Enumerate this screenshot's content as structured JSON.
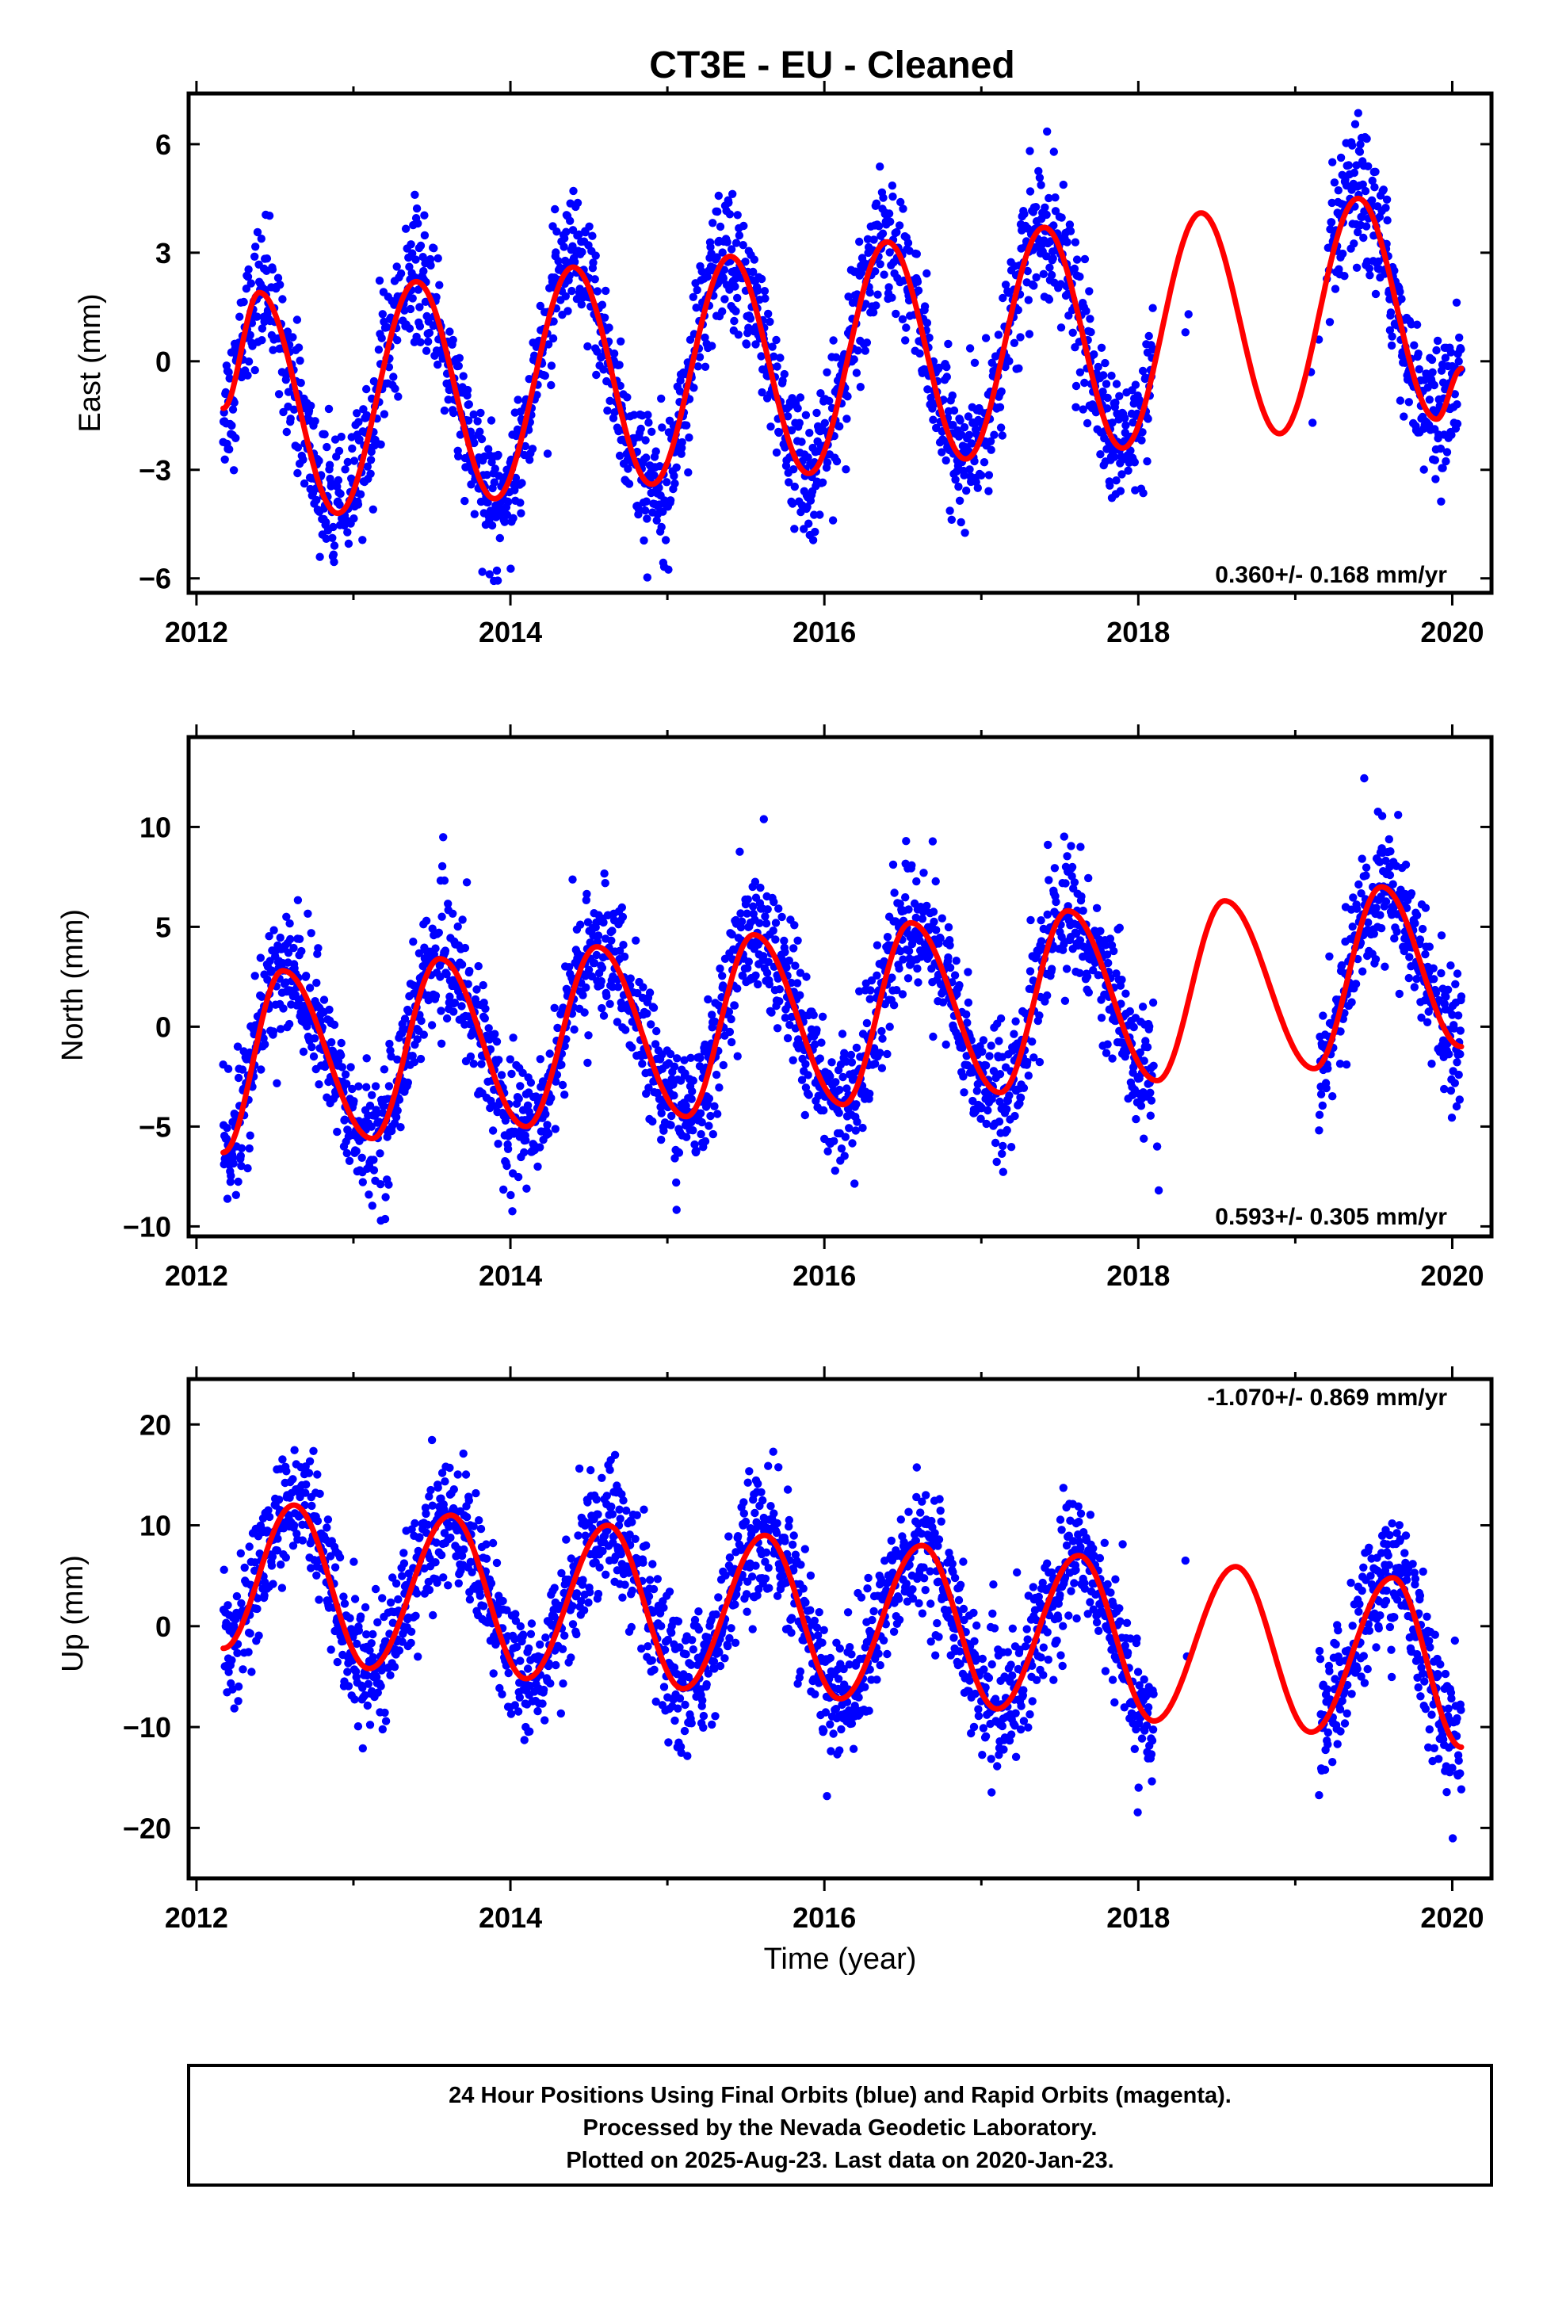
{
  "title": "CT3E  - EU - Cleaned",
  "footer": {
    "lines": [
      "24 Hour Positions Using Final Orbits (blue) and Rapid Orbits (magenta).",
      "Processed by the Nevada Geodetic Laboratory.",
      "Plotted on 2025-Aug-23. Last data on 2020-Jan-23."
    ]
  },
  "colors": {
    "points": "#0000ff",
    "model": "#ff0000",
    "frame": "#000000"
  },
  "chart_data": [
    {
      "type": "scatter",
      "ylabel": "East (mm)",
      "xlim": [
        2011.95,
        2020.25
      ],
      "ylim": [
        -6.4,
        7.4
      ],
      "yticks": [
        -6,
        -3,
        0,
        3,
        6
      ],
      "yticklabels": [
        "−6",
        "−3",
        "0",
        "3",
        "6"
      ],
      "xticks": [
        2012,
        2014,
        2016,
        2018,
        2020
      ],
      "xticklabels": [
        "2012",
        "2014",
        "2016",
        "2018",
        "2020"
      ],
      "rate_label": "0.360+/- 0.168 mm/yr",
      "rate_position": "bottom-right",
      "model": {
        "start": 2012.17,
        "end": 2020.06,
        "peaks": [
          [
            2012.4,
            1.9
          ],
          [
            2013.4,
            2.2
          ],
          [
            2014.4,
            2.6
          ],
          [
            2015.4,
            2.9
          ],
          [
            2016.4,
            3.3
          ],
          [
            2017.4,
            3.7
          ],
          [
            2018.4,
            4.1
          ],
          [
            2019.4,
            4.5
          ]
        ],
        "troughs": [
          [
            2012.17,
            -1.3
          ],
          [
            2012.9,
            -4.2
          ],
          [
            2013.9,
            -3.8
          ],
          [
            2014.9,
            -3.4
          ],
          [
            2015.9,
            -3.1
          ],
          [
            2016.9,
            -2.7
          ],
          [
            2017.9,
            -2.4
          ],
          [
            2018.9,
            -2.0
          ],
          [
            2019.9,
            -1.6
          ],
          [
            2020.06,
            -0.2
          ]
        ]
      },
      "scatter_gaps": [
        [
          2018.1,
          2019.2
        ]
      ],
      "sparse_points": [
        [
          2018.3,
          0.8
        ],
        [
          2018.32,
          1.3
        ],
        [
          2019.1,
          -0.3
        ],
        [
          2019.11,
          -1.7
        ],
        [
          2019.15,
          0.6
        ]
      ],
      "noise_sd": 0.9
    },
    {
      "type": "scatter",
      "ylabel": "North (mm)",
      "xlim": [
        2011.95,
        2020.25
      ],
      "ylim": [
        -10.5,
        14.5
      ],
      "yticks": [
        -10,
        -5,
        0,
        5,
        10
      ],
      "yticklabels": [
        "−10",
        "−5",
        "0",
        "5",
        "10"
      ],
      "xticks": [
        2012,
        2014,
        2016,
        2018,
        2020
      ],
      "xticklabels": [
        "2012",
        "2014",
        "2016",
        "2018",
        "2020"
      ],
      "rate_label": "0.593+/- 0.305 mm/yr",
      "rate_position": "bottom-right",
      "model": {
        "start": 2012.17,
        "end": 2020.06,
        "peaks": [
          [
            2012.55,
            2.8
          ],
          [
            2013.55,
            3.4
          ],
          [
            2014.55,
            4.0
          ],
          [
            2015.55,
            4.6
          ],
          [
            2016.55,
            5.2
          ],
          [
            2017.55,
            5.8
          ],
          [
            2018.55,
            6.3
          ],
          [
            2019.55,
            7.0
          ]
        ],
        "troughs": [
          [
            2012.17,
            -6.3
          ],
          [
            2013.12,
            -5.6
          ],
          [
            2014.1,
            -5.0
          ],
          [
            2015.12,
            -4.5
          ],
          [
            2016.12,
            -3.9
          ],
          [
            2017.12,
            -3.3
          ],
          [
            2018.12,
            -2.7
          ],
          [
            2019.12,
            -2.1
          ],
          [
            2020.06,
            -1.0
          ]
        ]
      },
      "scatter_gaps": [
        [
          2018.1,
          2019.15
        ]
      ],
      "sparse_points": [
        [
          2018.12,
          -6.0
        ],
        [
          2018.13,
          -8.2
        ]
      ],
      "noise_sd": 1.6
    },
    {
      "type": "scatter",
      "ylabel": "Up (mm)",
      "xlabel": "Time (year)",
      "xlim": [
        2011.95,
        2020.25
      ],
      "ylim": [
        -25,
        24.5
      ],
      "yticks": [
        -20,
        -10,
        0,
        10,
        20
      ],
      "yticklabels": [
        "−20",
        "−10",
        "0",
        "10",
        "20"
      ],
      "xticks": [
        2012,
        2014,
        2016,
        2018,
        2020
      ],
      "xticklabels": [
        "2012",
        "2014",
        "2016",
        "2018",
        "2020"
      ],
      "rate_label": "-1.070+/- 0.869 mm/yr",
      "rate_position": "top-right",
      "model": {
        "start": 2012.17,
        "end": 2020.06,
        "peaks": [
          [
            2012.62,
            12.0
          ],
          [
            2013.62,
            11.0
          ],
          [
            2014.62,
            10.0
          ],
          [
            2015.62,
            9.0
          ],
          [
            2016.62,
            8.0
          ],
          [
            2017.62,
            7.0
          ],
          [
            2018.62,
            5.9
          ],
          [
            2019.62,
            4.8
          ]
        ],
        "troughs": [
          [
            2012.17,
            -2.2
          ],
          [
            2013.1,
            -4.2
          ],
          [
            2014.1,
            -5.2
          ],
          [
            2015.1,
            -6.2
          ],
          [
            2016.1,
            -7.2
          ],
          [
            2017.1,
            -8.2
          ],
          [
            2018.1,
            -9.4
          ],
          [
            2019.1,
            -10.5
          ],
          [
            2020.06,
            -12.0
          ]
        ]
      },
      "scatter_gaps": [
        [
          2018.1,
          2019.15
        ]
      ],
      "sparse_points": [
        [
          2018.3,
          6.5
        ],
        [
          2018.31,
          -3.0
        ]
      ],
      "noise_sd": 3.2
    }
  ]
}
